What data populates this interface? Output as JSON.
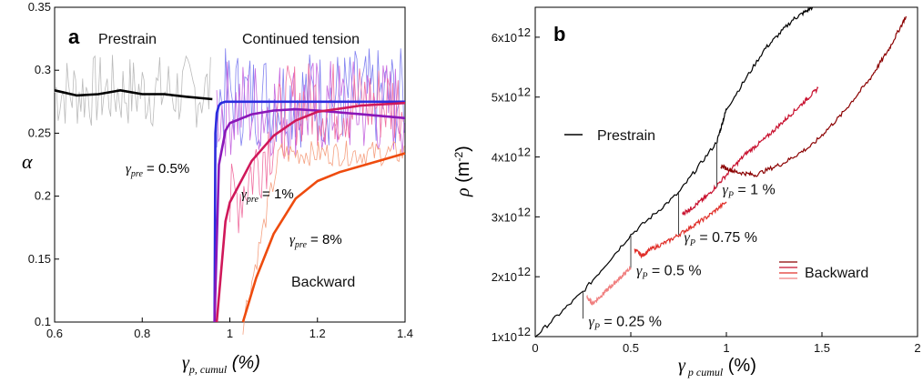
{
  "chart_data": [
    {
      "type": "line",
      "panel_label": "a",
      "xlabel": "γp, cumul (%)",
      "ylabel": "α",
      "xlim": [
        0.6,
        1.4
      ],
      "ylim": [
        0.1,
        0.35
      ],
      "xticks": [
        "0.6",
        "0.8",
        "1",
        "1.2",
        "1.4"
      ],
      "yticks": [
        "0.1",
        "0.15",
        "0.2",
        "0.25",
        "0.3",
        "0.35"
      ],
      "grid": false,
      "annotations": [
        "Prestrain",
        "Continued tension",
        "Backward"
      ],
      "curve_labels": [
        {
          "text": "γpre = 0.5%",
          "pos": "left-middle"
        },
        {
          "text": "γpre = 1%",
          "pos": "center"
        },
        {
          "text": "γpre = 8%",
          "pos": "center-low"
        }
      ],
      "colors": {
        "prestrain": "#000000",
        "pre05": "#2b2bdd",
        "pre05b": "#8a17b8",
        "pre1": "#d0185a",
        "pre8": "#ee4b0e",
        "noise_gray": "#bbbbbb"
      },
      "series": [
        {
          "key": "prestrain",
          "x": [
            0.6,
            0.65,
            0.7,
            0.75,
            0.8,
            0.85,
            0.9,
            0.96
          ],
          "values": [
            0.284,
            0.28,
            0.281,
            0.284,
            0.281,
            0.281,
            0.279,
            0.277
          ]
        },
        {
          "key": "pre05",
          "x": [
            0.965,
            0.967,
            0.97,
            0.975,
            0.98,
            0.99,
            1.0,
            1.05,
            1.1,
            1.2,
            1.3,
            1.4
          ],
          "values": [
            0.1,
            0.25,
            0.266,
            0.272,
            0.274,
            0.275,
            0.275,
            0.275,
            0.275,
            0.275,
            0.275,
            0.275
          ]
        },
        {
          "key": "pre05b",
          "x": [
            0.965,
            0.975,
            0.99,
            1.0,
            1.05,
            1.1,
            1.15,
            1.2,
            1.3,
            1.4
          ],
          "values": [
            0.1,
            0.225,
            0.252,
            0.258,
            0.265,
            0.268,
            0.269,
            0.268,
            0.265,
            0.262
          ]
        },
        {
          "key": "pre1",
          "x": [
            0.97,
            0.99,
            1.0,
            1.05,
            1.1,
            1.15,
            1.2,
            1.3,
            1.4
          ],
          "values": [
            0.1,
            0.18,
            0.195,
            0.228,
            0.248,
            0.26,
            0.267,
            0.272,
            0.274
          ]
        },
        {
          "key": "pre8",
          "x": [
            1.03,
            1.06,
            1.1,
            1.15,
            1.2,
            1.25,
            1.3,
            1.35,
            1.4
          ],
          "values": [
            0.1,
            0.135,
            0.17,
            0.198,
            0.212,
            0.219,
            0.224,
            0.229,
            0.234
          ]
        }
      ]
    },
    {
      "type": "line",
      "panel_label": "b",
      "xlabel": "γp cumul (%)",
      "ylabel": "ρ (m-2)",
      "xlim": [
        0,
        2
      ],
      "ylim": [
        1000000000000.0,
        6500000000000.0
      ],
      "xticks": [
        "0",
        "0.5",
        "1",
        "1.5",
        "2"
      ],
      "yticks": [
        "1x10",
        "2x10",
        "3x10",
        "4x10",
        "5x10",
        "6x10"
      ],
      "ytick_exponent": "12",
      "grid": false,
      "legend": [
        {
          "text": "Prestrain",
          "color": "#000000"
        },
        {
          "text": "Backward",
          "color": "#cc2222"
        }
      ],
      "marker_labels": [
        "γP = 0.25 %",
        "γP = 0.5 %",
        "γP = 0.75 %",
        "γP = 1 %"
      ],
      "colors": {
        "prestrain": "#000000",
        "bw025": "#f08080",
        "bw05": "#e0302a",
        "bw075": "#c8102e",
        "bw1": "#8b0000"
      },
      "series": [
        {
          "key": "prestrain",
          "x": [
            0,
            0.25,
            0.5,
            0.75,
            0.95,
            1.0,
            1.2,
            1.35,
            1.45
          ],
          "values": [
            1000000000000.0,
            1750000000000.0,
            2700000000000.0,
            3400000000000.0,
            4250000000000.0,
            4800000000000.0,
            5800000000000.0,
            6300000000000.0,
            6500000000000.0
          ]
        },
        {
          "key": "bw025",
          "x": [
            0.27,
            0.3,
            0.35,
            0.4,
            0.45,
            0.5
          ],
          "values": [
            1650000000000.0,
            1550000000000.0,
            1700000000000.0,
            1850000000000.0,
            2000000000000.0,
            2150000000000.0
          ]
        },
        {
          "key": "bw05",
          "x": [
            0.52,
            0.56,
            0.6,
            0.7,
            0.8,
            0.9,
            1.0
          ],
          "values": [
            2450000000000.0,
            2350000000000.0,
            2450000000000.0,
            2600000000000.0,
            2800000000000.0,
            3000000000000.0,
            3250000000000.0
          ]
        },
        {
          "key": "bw075",
          "x": [
            0.77,
            0.82,
            0.9,
            1.0,
            1.1,
            1.2,
            1.3,
            1.4,
            1.48
          ],
          "values": [
            3050000000000.0,
            3150000000000.0,
            3350000000000.0,
            3700000000000.0,
            4050000000000.0,
            4300000000000.0,
            4600000000000.0,
            4900000000000.0,
            5150000000000.0
          ]
        },
        {
          "key": "bw1",
          "x": [
            0.97,
            1.05,
            1.15,
            1.3,
            1.45,
            1.6,
            1.75,
            1.85,
            1.94
          ],
          "values": [
            3850000000000.0,
            3750000000000.0,
            3700000000000.0,
            3900000000000.0,
            4200000000000.0,
            4700000000000.0,
            5300000000000.0,
            5800000000000.0,
            6350000000000.0
          ]
        }
      ]
    }
  ]
}
